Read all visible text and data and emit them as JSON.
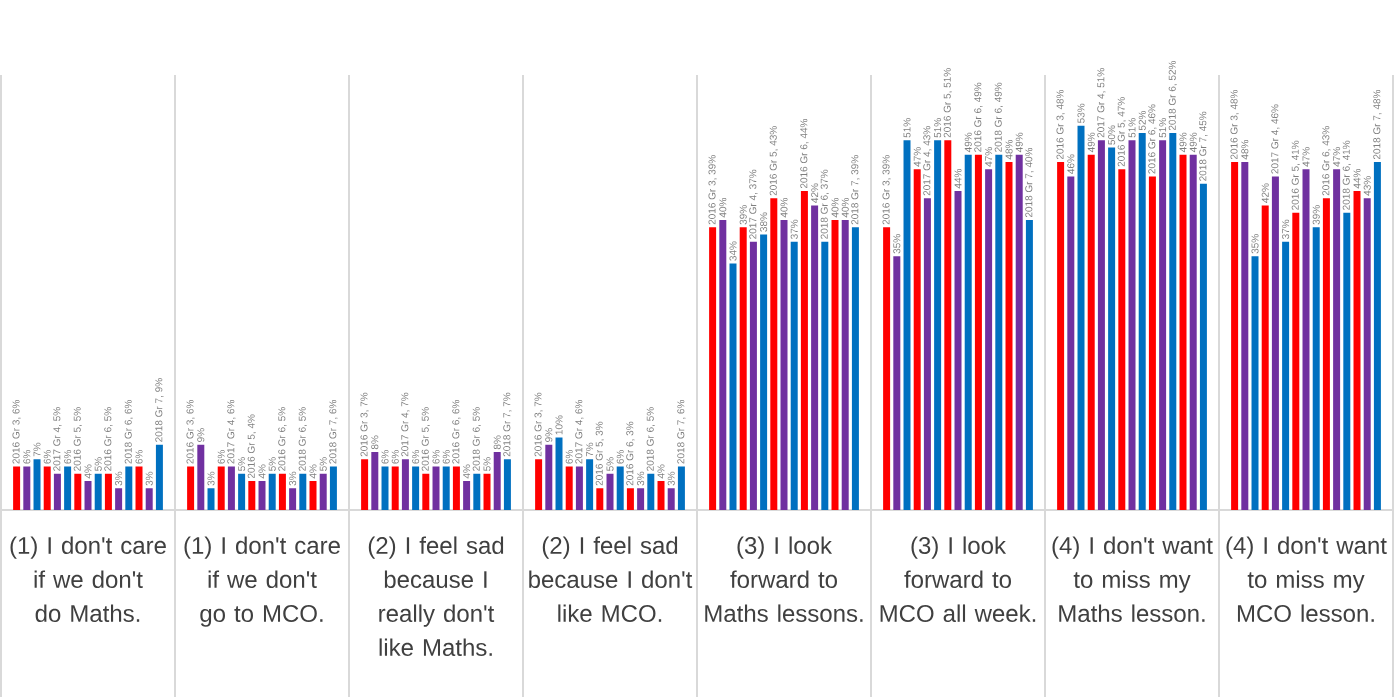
{
  "chart_data": {
    "type": "bar",
    "categories": [
      "(1) I don't care if we don't do Maths.",
      "(1) I don't care if we don't go to MCO.",
      "(2) I feel sad because I really don't like Maths.",
      "(2) I feel sad because I don't like MCO.",
      "(3) I look forward to Maths lessons.",
      "(3) I look forward to MCO all week.",
      "(4) I don't want to miss my Maths lesson.",
      "(4) I don't want to miss my MCO lesson."
    ],
    "series": [
      {
        "color": "#ff0000",
        "values": [
          6,
          6,
          7,
          7,
          39,
          39,
          48,
          48
        ],
        "value_labels": [
          "2016 Gr 3, 6%",
          "2016 Gr 3, 6%",
          "2016 Gr 3, 7%",
          "2016 Gr 3, 7%",
          "2016 Gr 3, 39%",
          "2016 Gr 3, 39%",
          "2016 Gr 3, 48%",
          "2016 Gr 3, 48%"
        ]
      },
      {
        "color": "#7030a0",
        "values": [
          6,
          9,
          8,
          9,
          40,
          35,
          46,
          48
        ],
        "value_labels": [
          "6%",
          "9%",
          "8%",
          "9%",
          "40%",
          "35%",
          "46%",
          "48%"
        ]
      },
      {
        "color": "#0070c0",
        "values": [
          7,
          3,
          6,
          10,
          34,
          51,
          53,
          35
        ],
        "value_labels": [
          "7%",
          "3%",
          "6%",
          "10%",
          "34%",
          "51%",
          "53%",
          "35%"
        ]
      },
      {
        "color": "#ff0000",
        "values": [
          6,
          6,
          6,
          6,
          39,
          47,
          49,
          42
        ],
        "value_labels": [
          "6%",
          "6%",
          "6%",
          "6%",
          "39%",
          "47%",
          "49%",
          "42%"
        ]
      },
      {
        "color": "#7030a0",
        "values": [
          5,
          6,
          7,
          6,
          37,
          43,
          51,
          46
        ],
        "value_labels": [
          "2017 Gr 4, 5%",
          "2017 Gr 4, 6%",
          "2017 Gr 4, 7%",
          "2017 Gr 4, 6%",
          "2017 Gr 4, 37%",
          "2017 Gr 4, 43%",
          "2017 Gr 4, 51%",
          "2017 Gr 4, 46%"
        ]
      },
      {
        "color": "#0070c0",
        "values": [
          6,
          5,
          6,
          7,
          38,
          51,
          50,
          37
        ],
        "value_labels": [
          "6%",
          "5%",
          "6%",
          "7%",
          "38%",
          "51%",
          "50%",
          "37%"
        ]
      },
      {
        "color": "#ff0000",
        "values": [
          5,
          4,
          5,
          3,
          43,
          51,
          47,
          41
        ],
        "value_labels": [
          "2016 Gr 5, 5%",
          "2016 Gr 5, 4%",
          "2016 Gr 5, 5%",
          "2016 Gr 5, 3%",
          "2016 Gr 5, 43%",
          "2016 Gr 5, 51%",
          "2016 Gr 5, 47%",
          "2016 Gr 5, 41%"
        ]
      },
      {
        "color": "#7030a0",
        "values": [
          4,
          4,
          6,
          5,
          40,
          44,
          51,
          47
        ],
        "value_labels": [
          "4%",
          "4%",
          "6%",
          "5%",
          "40%",
          "44%",
          "51%",
          "47%"
        ]
      },
      {
        "color": "#0070c0",
        "values": [
          5,
          5,
          6,
          6,
          37,
          49,
          52,
          39
        ],
        "value_labels": [
          "5%",
          "5%",
          "6%",
          "6%",
          "37%",
          "49%",
          "52%",
          "39%"
        ]
      },
      {
        "color": "#ff0000",
        "values": [
          5,
          5,
          6,
          3,
          44,
          49,
          46,
          43
        ],
        "value_labels": [
          "2016 Gr 6, 5%",
          "2016 Gr 6, 5%",
          "2016 Gr 6, 6%",
          "2016 Gr 6, 3%",
          "2016 Gr 6, 44%",
          "2016 Gr 6, 49%",
          "2016 Gr 6, 46%",
          "2016 Gr 6, 43%"
        ]
      },
      {
        "color": "#7030a0",
        "values": [
          3,
          3,
          4,
          3,
          42,
          47,
          51,
          47
        ],
        "value_labels": [
          "3%",
          "3%",
          "4%",
          "3%",
          "42%",
          "47%",
          "51%",
          "47%"
        ]
      },
      {
        "color": "#0070c0",
        "values": [
          6,
          5,
          5,
          5,
          37,
          49,
          52,
          41
        ],
        "value_labels": [
          "2018 Gr 6, 6%",
          "2018 Gr 6, 5%",
          "2018 Gr 6, 5%",
          "2018 Gr 6, 5%",
          "2018 Gr 6, 37%",
          "2018 Gr 6, 49%",
          "2018 Gr 6, 52%",
          "2018 Gr 6, 41%"
        ]
      },
      {
        "color": "#ff0000",
        "values": [
          6,
          4,
          5,
          4,
          40,
          48,
          49,
          44
        ],
        "value_labels": [
          "6%",
          "4%",
          "5%",
          "4%",
          "40%",
          "48%",
          "49%",
          "44%"
        ]
      },
      {
        "color": "#7030a0",
        "values": [
          3,
          5,
          8,
          3,
          40,
          49,
          49,
          43
        ],
        "value_labels": [
          "3%",
          "5%",
          "8%",
          "3%",
          "40%",
          "49%",
          "49%",
          "43%"
        ]
      },
      {
        "color": "#0070c0",
        "values": [
          9,
          6,
          7,
          6,
          39,
          40,
          45,
          48
        ],
        "value_labels": [
          "2018 Gr 7, 9%",
          "2018 Gr 7, 6%",
          "2018 Gr 7, 7%",
          "2018 Gr 7, 6%",
          "2018 Gr 7, 39%",
          "2018 Gr 7, 40%",
          "2018 Gr 7, 45%",
          "2018 Gr 7, 48%"
        ]
      }
    ],
    "ylim": [
      0,
      60
    ],
    "grid": "x"
  }
}
